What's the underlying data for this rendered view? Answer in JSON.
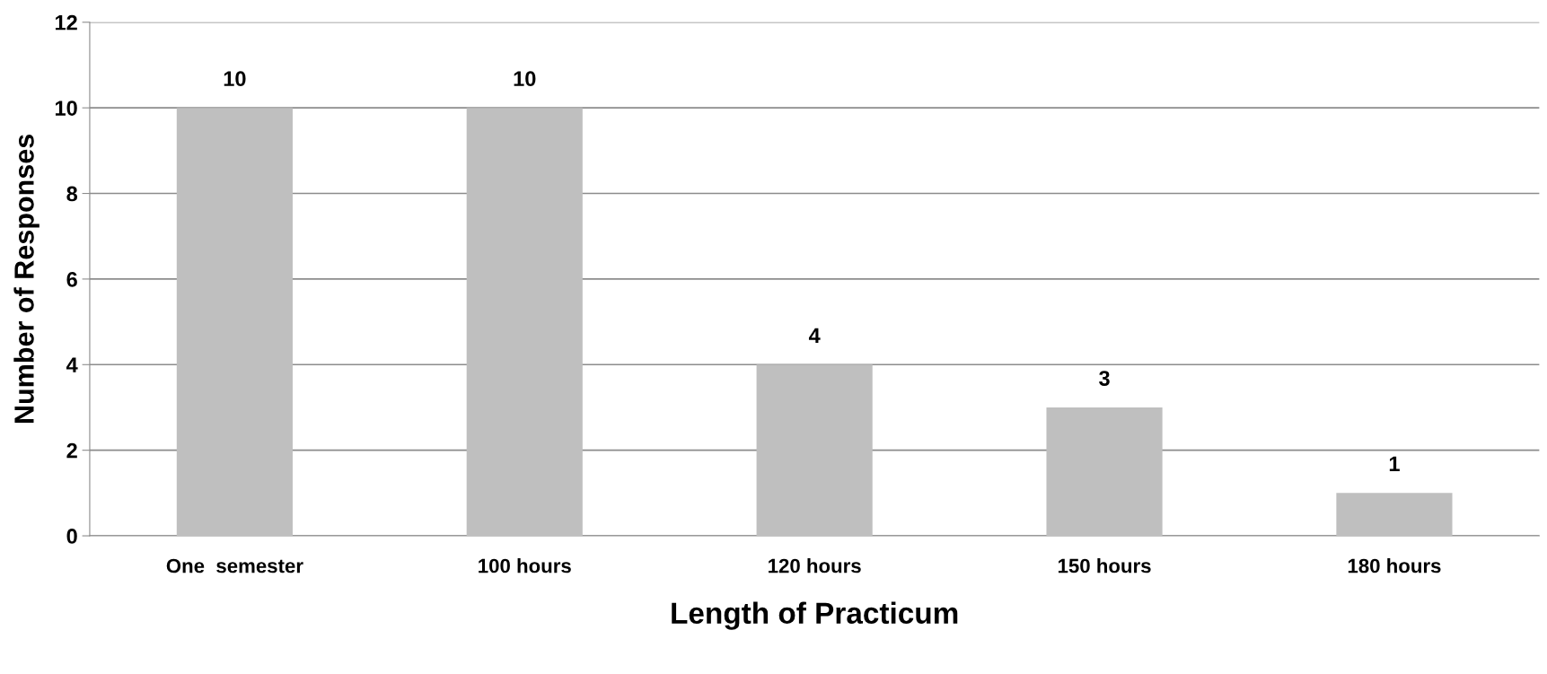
{
  "chart_data": {
    "type": "bar",
    "xlabel": "Length of Practicum",
    "ylabel": "Number of Responses",
    "categories": [
      "One  semester",
      "100 hours",
      "120 hours",
      "150 hours",
      "180 hours"
    ],
    "values": [
      10,
      10,
      4,
      3,
      1
    ],
    "color": "#bfbfbf",
    "ylim": [
      0,
      12
    ],
    "yticks": [
      0,
      2,
      4,
      6,
      8,
      10,
      12
    ],
    "grid": "y",
    "data_labels": true
  }
}
